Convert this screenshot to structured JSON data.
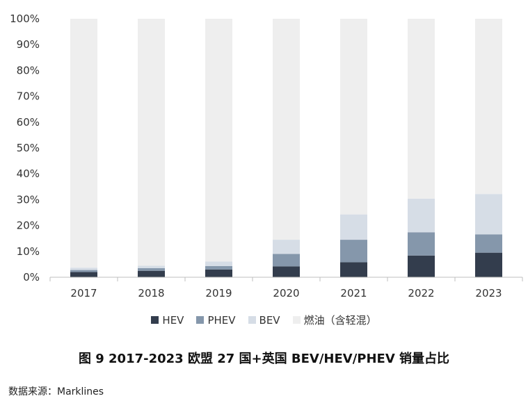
{
  "chart_data": {
    "type": "bar",
    "stacked": true,
    "categories": [
      "2017",
      "2018",
      "2019",
      "2020",
      "2021",
      "2022",
      "2023"
    ],
    "series": [
      {
        "name": "HEV",
        "color": "#333d4d",
        "values": [
          2.0,
          2.5,
          3.0,
          4.2,
          5.8,
          8.4,
          9.5
        ]
      },
      {
        "name": "PHEV",
        "color": "#8597ab",
        "values": [
          0.8,
          1.0,
          1.3,
          4.8,
          8.7,
          9.0,
          7.1
        ]
      },
      {
        "name": "BEV",
        "color": "#d6dde6",
        "values": [
          0.9,
          1.0,
          1.8,
          5.5,
          9.8,
          13.0,
          15.6
        ]
      },
      {
        "name": "燃油（含轻混）",
        "color": "#eeeeee",
        "values": [
          96.3,
          95.5,
          93.9,
          85.5,
          75.7,
          69.6,
          67.8
        ]
      }
    ],
    "ylim": [
      0,
      100
    ],
    "yticks": [
      "0%",
      "10%",
      "20%",
      "30%",
      "40%",
      "50%",
      "60%",
      "70%",
      "80%",
      "90%",
      "100%"
    ],
    "legend": "bottom",
    "title": "图 9 2017-2023 欧盟 27 国+英国 BEV/HEV/PHEV 销量占比"
  },
  "source": "数据来源：Marklines"
}
